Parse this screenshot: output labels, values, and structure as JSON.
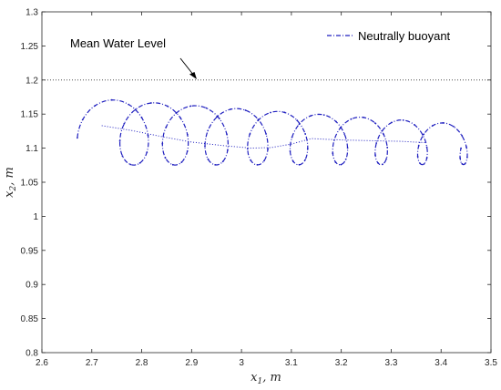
{
  "chart_data": {
    "type": "line",
    "title": "",
    "xlabel": "x",
    "xlabel_sub": "1",
    "xlabel_unit": ", m",
    "ylabel": "x",
    "ylabel_sub": "2",
    "ylabel_unit": ", m",
    "xlim": [
      2.6,
      3.5
    ],
    "ylim": [
      0.8,
      1.3
    ],
    "xticks": [
      "2.6",
      "2.7",
      "2.8",
      "2.9",
      "3",
      "3.1",
      "3.2",
      "3.3",
      "3.4",
      "3.5"
    ],
    "yticks": [
      "0.8",
      "0.85",
      "0.9",
      "0.95",
      "1",
      "1.05",
      "1.1",
      "1.15",
      "1.2",
      "1.25",
      "1.3"
    ],
    "grid": false,
    "legend": {
      "position": "top-right",
      "entries": [
        "Neutrally buoyant"
      ]
    },
    "reference_line": {
      "y": 1.2,
      "style": "dotted"
    },
    "annotation": {
      "text": "Mean Water Level",
      "x": 2.66,
      "y": 1.225,
      "arrow_to": [
        2.92,
        1.2
      ]
    },
    "series": [
      {
        "name": "Neutrally buoyant",
        "color": "#1f1fbf",
        "style": "dash-dot",
        "generator": {
          "x_start": 2.671,
          "x_end": 3.44,
          "loops": 9,
          "radius_x_start": 0.0498,
          "radius_x_end": 0.0236,
          "radius_y_start": 0.0484,
          "radius_y_end": 0.029,
          "center_y_start": 1.1235,
          "center_y_end": 1.105,
          "phase_start_deg": 190
        }
      },
      {
        "name": "",
        "color": "#1f1fbf",
        "style": "dotted",
        "x": [
          2.72,
          2.78,
          2.84,
          2.9,
          2.96,
          3.02,
          3.06,
          3.1,
          3.14,
          3.2,
          3.26,
          3.32,
          3.37
        ],
        "y": [
          1.133,
          1.126,
          1.117,
          1.109,
          1.104,
          1.1,
          1.101,
          1.106,
          1.114,
          1.112,
          1.111,
          1.11,
          1.108
        ]
      }
    ]
  }
}
